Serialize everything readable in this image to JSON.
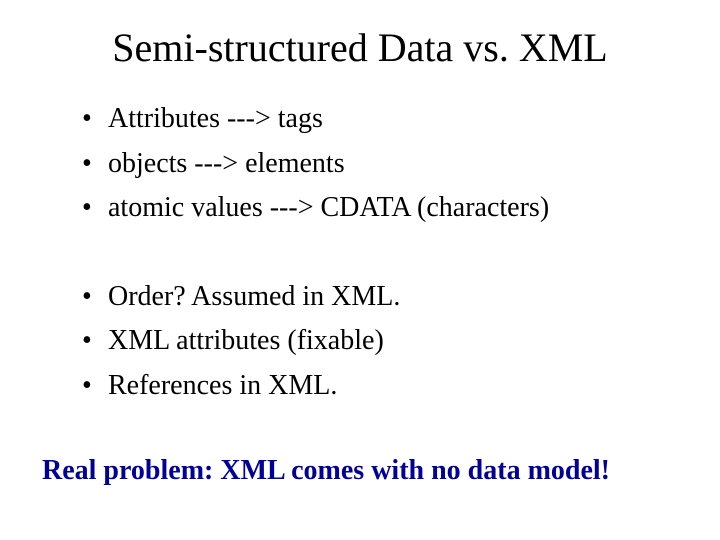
{
  "slide": {
    "title": "Semi-structured Data vs. XML",
    "title_fontsize": 40,
    "bullet_fontsize": 28,
    "text_color": "#000000",
    "footer_color": "#000099",
    "background_color": "#ffffff",
    "font_family": "Times New Roman",
    "group1": {
      "b1": "Attributes  --->  tags",
      "b2": "objects ---> elements",
      "b3": "atomic values --->  CDATA (characters)"
    },
    "group2": {
      "b1": "Order? Assumed in XML.",
      "b2": "XML attributes (fixable)",
      "b3": "References in XML."
    },
    "footer": "Real problem: XML comes with no data model!"
  }
}
